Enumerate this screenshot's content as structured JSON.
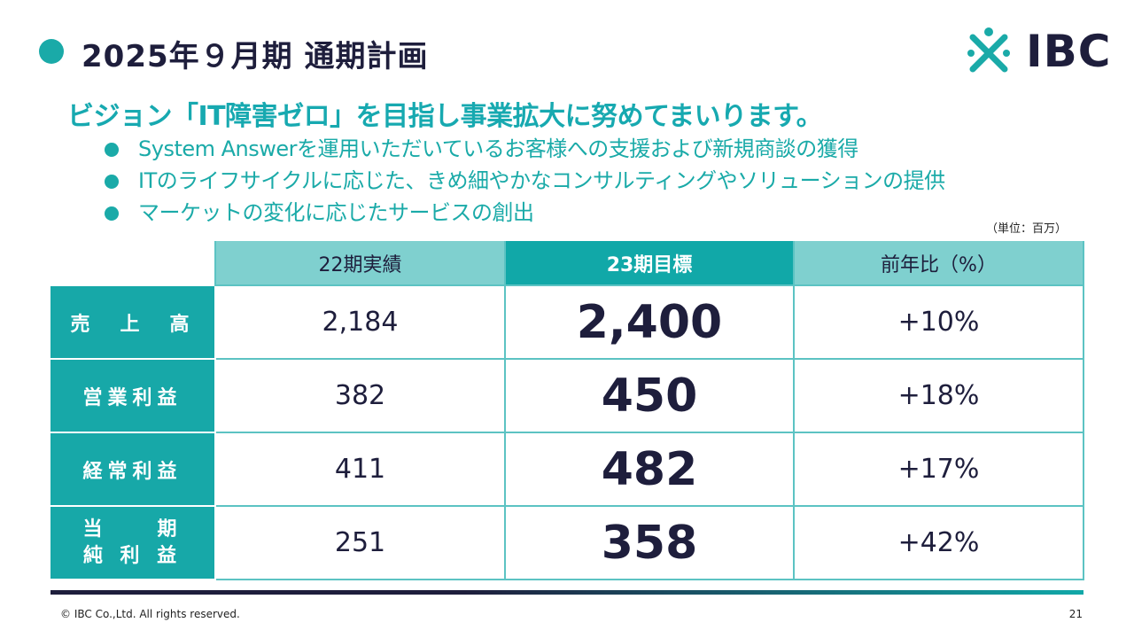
{
  "slide": {
    "title": "2025年９月期 通期計画",
    "logo_text": "IBC",
    "headline": "ビジョン「IT障害ゼロ」を目指し事業拡大に努めてまいります。",
    "bullets": [
      "System Answerを運用いただいているお客様への支援および新規商談の獲得",
      "ITのライフサイクルに応じた、きめ細やかなコンサルティングやソリューションの提供",
      "マーケットの変化に応じたサービスの創出"
    ],
    "unit_note": "（単位：百万）"
  },
  "table": {
    "headers": [
      "22期実績",
      "23期目標",
      "前年比（%）"
    ],
    "rows": [
      {
        "label": "売　上　高",
        "actual": "2,184",
        "target": "2,400",
        "yoy": "+10%"
      },
      {
        "label": "営業利益",
        "actual": "382",
        "target": "450",
        "yoy": "+18%"
      },
      {
        "label": "経常利益",
        "actual": "411",
        "target": "482",
        "yoy": "+17%"
      },
      {
        "label_line1": "当　　期",
        "label_line2": "純 利 益",
        "actual": "251",
        "target": "358",
        "yoy": "+42%"
      }
    ]
  },
  "footer": {
    "copyright": "© IBC Co.,Ltd. All rights reserved.",
    "page_number": "21"
  },
  "colors": {
    "accent": "#1aaaa8",
    "header_light": "#7fd0cf",
    "header_dark": "#11a8a8",
    "navy": "#1e1e3c"
  }
}
